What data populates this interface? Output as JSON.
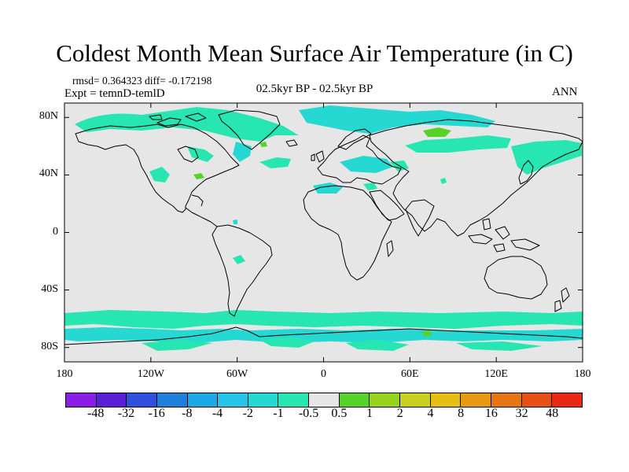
{
  "title": "Coldest Month Mean Surface Air Temperature (in C)",
  "stats": "rmsd= 0.364323 diff= -0.172198",
  "experiment": "Expt = temnD-temlD",
  "period": "02.5kyr BP - 02.5kyr BP",
  "season": "ANN",
  "lat_labels": [
    "80N",
    "40N",
    "0",
    "40S",
    "80S"
  ],
  "lon_labels": [
    "180",
    "120W",
    "60W",
    "0",
    "60E",
    "120E",
    "180"
  ],
  "colorbar": {
    "labels": [
      "-48",
      "-32",
      "-16",
      "-8",
      "-4",
      "-2",
      "-1",
      "-0.5",
      "0.5",
      "1",
      "2",
      "4",
      "8",
      "16",
      "32",
      "48"
    ],
    "colors": [
      "#8a1ee6",
      "#5a1ed6",
      "#2e50dc",
      "#1f7fdc",
      "#1fa8e6",
      "#26c4e8",
      "#26d8d2",
      "#28e6b2",
      "#e6e6e6",
      "#56d22a",
      "#96d21e",
      "#c8d21e",
      "#e6be14",
      "#e69a14",
      "#e67514",
      "#e65014",
      "#e62814"
    ]
  },
  "map": {
    "ocean_color": "#e6e6e6",
    "anomaly_color": "#28e6b2",
    "anomaly_light_color": "#26d8d2",
    "warm_color": "#56d22a"
  }
}
